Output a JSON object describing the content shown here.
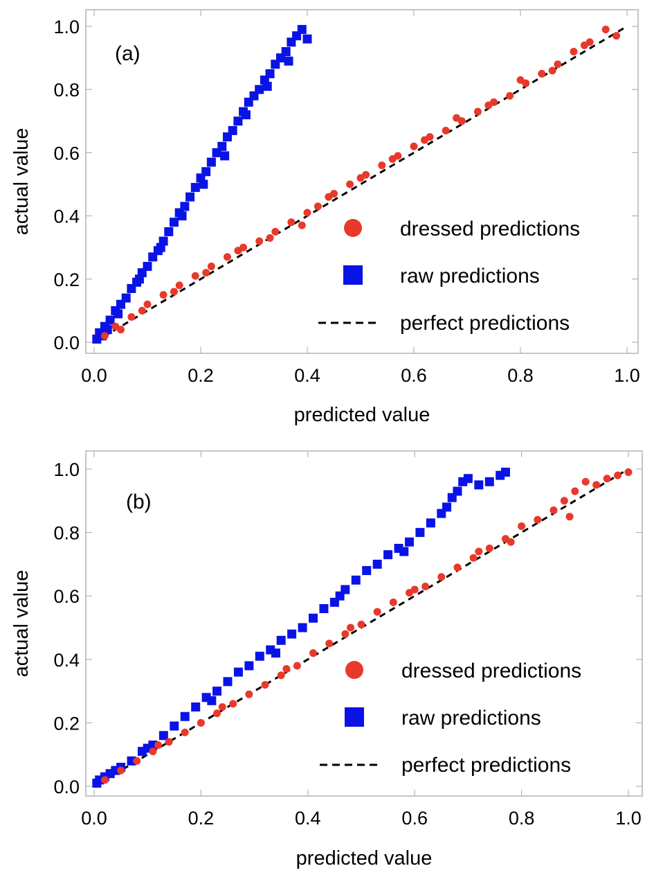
{
  "colors": {
    "dressed": "#e8392a",
    "raw": "#0a13e6",
    "perfect": "#000000",
    "frame": "#b3b3b3"
  },
  "chart_data": [
    {
      "type": "scatter",
      "panel_label": "(a)",
      "xlabel": "predicted value",
      "ylabel": "actual value",
      "xlim": [
        0,
        1.0
      ],
      "ylim": [
        0,
        1.0
      ],
      "x_ticks": [
        "0.0",
        "0.2",
        "0.4",
        "0.6",
        "0.8",
        "1.0"
      ],
      "y_ticks": [
        "0.0",
        "0.2",
        "0.4",
        "0.6",
        "0.8",
        "1.0"
      ],
      "legend": [
        "dressed predictions",
        "raw predictions",
        "perfect predictions"
      ],
      "legend_position": "lower-right",
      "series": [
        {
          "name": "dressed predictions",
          "marker": "circle",
          "x": [
            0.02,
            0.04,
            0.07,
            0.1,
            0.13,
            0.16,
            0.19,
            0.22,
            0.25,
            0.28,
            0.31,
            0.34,
            0.37,
            0.4,
            0.42,
            0.45,
            0.48,
            0.51,
            0.54,
            0.57,
            0.6,
            0.63,
            0.66,
            0.69,
            0.72,
            0.75,
            0.78,
            0.81,
            0.84,
            0.87,
            0.9,
            0.93,
            0.96,
            0.98,
            0.05,
            0.09,
            0.15,
            0.21,
            0.27,
            0.33,
            0.39,
            0.44,
            0.5,
            0.56,
            0.62,
            0.68,
            0.74,
            0.8,
            0.86,
            0.92
          ],
          "y": [
            0.02,
            0.05,
            0.08,
            0.12,
            0.15,
            0.18,
            0.21,
            0.24,
            0.27,
            0.3,
            0.32,
            0.35,
            0.38,
            0.41,
            0.43,
            0.47,
            0.5,
            0.53,
            0.56,
            0.59,
            0.62,
            0.65,
            0.67,
            0.7,
            0.73,
            0.76,
            0.78,
            0.82,
            0.85,
            0.88,
            0.92,
            0.95,
            0.99,
            0.97,
            0.04,
            0.1,
            0.16,
            0.22,
            0.29,
            0.33,
            0.37,
            0.46,
            0.52,
            0.58,
            0.64,
            0.71,
            0.75,
            0.83,
            0.86,
            0.94
          ]
        },
        {
          "name": "raw predictions",
          "marker": "square",
          "x": [
            0.005,
            0.01,
            0.015,
            0.02,
            0.03,
            0.04,
            0.05,
            0.06,
            0.07,
            0.08,
            0.09,
            0.1,
            0.11,
            0.12,
            0.13,
            0.14,
            0.15,
            0.16,
            0.17,
            0.18,
            0.19,
            0.2,
            0.21,
            0.22,
            0.23,
            0.24,
            0.25,
            0.26,
            0.27,
            0.28,
            0.29,
            0.3,
            0.31,
            0.32,
            0.33,
            0.34,
            0.35,
            0.36,
            0.37,
            0.38,
            0.39,
            0.4,
            0.025,
            0.045,
            0.085,
            0.125,
            0.165,
            0.205,
            0.245,
            0.285,
            0.325,
            0.365
          ],
          "y": [
            0.01,
            0.03,
            0.02,
            0.05,
            0.07,
            0.1,
            0.12,
            0.14,
            0.17,
            0.19,
            0.22,
            0.24,
            0.27,
            0.29,
            0.32,
            0.35,
            0.38,
            0.41,
            0.43,
            0.46,
            0.49,
            0.52,
            0.54,
            0.57,
            0.6,
            0.62,
            0.65,
            0.67,
            0.7,
            0.73,
            0.76,
            0.78,
            0.8,
            0.83,
            0.85,
            0.88,
            0.9,
            0.92,
            0.95,
            0.97,
            0.99,
            0.96,
            0.04,
            0.09,
            0.2,
            0.3,
            0.4,
            0.5,
            0.59,
            0.72,
            0.81,
            0.89
          ]
        },
        {
          "name": "perfect predictions",
          "marker": "dashed-line",
          "x": [
            0,
            1.0
          ],
          "y": [
            0,
            1.0
          ]
        }
      ]
    },
    {
      "type": "scatter",
      "panel_label": "(b)",
      "xlabel": "predicted value",
      "ylabel": "actual value",
      "xlim": [
        0,
        1.0
      ],
      "ylim": [
        0,
        1.0
      ],
      "x_ticks": [
        "0.0",
        "0.2",
        "0.4",
        "0.6",
        "0.8",
        "1.0"
      ],
      "y_ticks": [
        "0.0",
        "0.2",
        "0.4",
        "0.6",
        "0.8",
        "1.0"
      ],
      "legend": [
        "dressed predictions",
        "raw predictions",
        "perfect predictions"
      ],
      "legend_position": "lower-right",
      "series": [
        {
          "name": "dressed predictions",
          "marker": "circle",
          "x": [
            0.02,
            0.05,
            0.08,
            0.11,
            0.14,
            0.17,
            0.2,
            0.23,
            0.26,
            0.29,
            0.32,
            0.35,
            0.38,
            0.41,
            0.44,
            0.47,
            0.5,
            0.53,
            0.56,
            0.59,
            0.62,
            0.65,
            0.68,
            0.71,
            0.74,
            0.77,
            0.8,
            0.83,
            0.86,
            0.88,
            0.9,
            0.92,
            0.94,
            0.96,
            0.98,
            1.0,
            0.12,
            0.24,
            0.36,
            0.48,
            0.6,
            0.72,
            0.78,
            0.89
          ],
          "y": [
            0.02,
            0.05,
            0.08,
            0.11,
            0.14,
            0.17,
            0.2,
            0.23,
            0.26,
            0.29,
            0.32,
            0.35,
            0.38,
            0.42,
            0.45,
            0.48,
            0.51,
            0.55,
            0.58,
            0.61,
            0.63,
            0.66,
            0.69,
            0.72,
            0.75,
            0.78,
            0.82,
            0.84,
            0.87,
            0.9,
            0.93,
            0.96,
            0.95,
            0.97,
            0.98,
            0.99,
            0.13,
            0.25,
            0.37,
            0.5,
            0.62,
            0.74,
            0.77,
            0.85
          ]
        },
        {
          "name": "raw predictions",
          "marker": "square",
          "x": [
            0.005,
            0.01,
            0.02,
            0.03,
            0.05,
            0.07,
            0.09,
            0.11,
            0.13,
            0.15,
            0.17,
            0.19,
            0.21,
            0.23,
            0.25,
            0.27,
            0.29,
            0.31,
            0.33,
            0.35,
            0.37,
            0.39,
            0.41,
            0.43,
            0.45,
            0.47,
            0.49,
            0.51,
            0.53,
            0.55,
            0.57,
            0.59,
            0.61,
            0.63,
            0.65,
            0.66,
            0.67,
            0.68,
            0.69,
            0.7,
            0.72,
            0.74,
            0.76,
            0.77,
            0.04,
            0.1,
            0.22,
            0.34,
            0.46,
            0.58
          ],
          "y": [
            0.01,
            0.02,
            0.03,
            0.04,
            0.06,
            0.08,
            0.11,
            0.13,
            0.16,
            0.19,
            0.22,
            0.25,
            0.28,
            0.3,
            0.33,
            0.36,
            0.38,
            0.41,
            0.43,
            0.46,
            0.48,
            0.5,
            0.53,
            0.56,
            0.58,
            0.62,
            0.65,
            0.68,
            0.7,
            0.73,
            0.75,
            0.77,
            0.8,
            0.83,
            0.86,
            0.88,
            0.91,
            0.93,
            0.96,
            0.97,
            0.95,
            0.96,
            0.98,
            0.99,
            0.05,
            0.12,
            0.27,
            0.42,
            0.6,
            0.74
          ]
        },
        {
          "name": "perfect predictions",
          "marker": "dashed-line",
          "x": [
            0,
            1.0
          ],
          "y": [
            0,
            1.0
          ]
        }
      ]
    }
  ]
}
